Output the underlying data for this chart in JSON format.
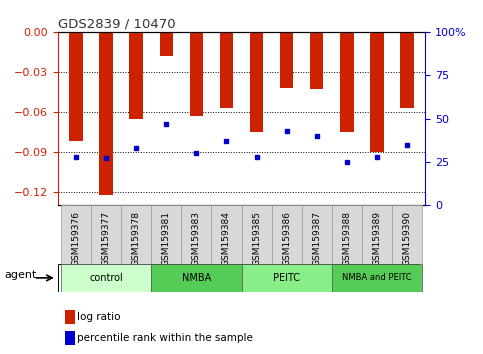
{
  "title": "GDS2839 / 10470",
  "samples": [
    "GSM159376",
    "GSM159377",
    "GSM159378",
    "GSM159381",
    "GSM159383",
    "GSM159384",
    "GSM159385",
    "GSM159386",
    "GSM159387",
    "GSM159388",
    "GSM159389",
    "GSM159390"
  ],
  "log_ratios": [
    -0.082,
    -0.122,
    -0.065,
    -0.018,
    -0.063,
    -0.057,
    -0.075,
    -0.042,
    -0.043,
    -0.075,
    -0.09,
    -0.057
  ],
  "percentile_ranks": [
    28,
    27,
    33,
    47,
    30,
    37,
    28,
    43,
    40,
    25,
    28,
    35
  ],
  "groups": [
    {
      "label": "control",
      "color": "#ccffcc",
      "start": 0,
      "end": 2
    },
    {
      "label": "NMBA",
      "color": "#55cc55",
      "start": 3,
      "end": 5
    },
    {
      "label": "PEITC",
      "color": "#88ee88",
      "start": 6,
      "end": 8
    },
    {
      "label": "NMBA and PEITC",
      "color": "#55cc55",
      "start": 9,
      "end": 11
    }
  ],
  "ylim_left": [
    -0.13,
    0.0
  ],
  "ylim_right": [
    0,
    100
  ],
  "yticks_left": [
    0,
    -0.03,
    -0.06,
    -0.09,
    -0.12
  ],
  "yticks_right": [
    0,
    25,
    50,
    75,
    100
  ],
  "bar_color": "#cc2200",
  "dot_color": "#0000cc",
  "agent_label": "agent",
  "legend_bar": "log ratio",
  "legend_dot": "percentile rank within the sample",
  "plot_bg": "#ffffff",
  "left_axis_color": "#cc2200",
  "right_axis_color": "#0000cc",
  "xtick_bg": "#d8d8d8"
}
